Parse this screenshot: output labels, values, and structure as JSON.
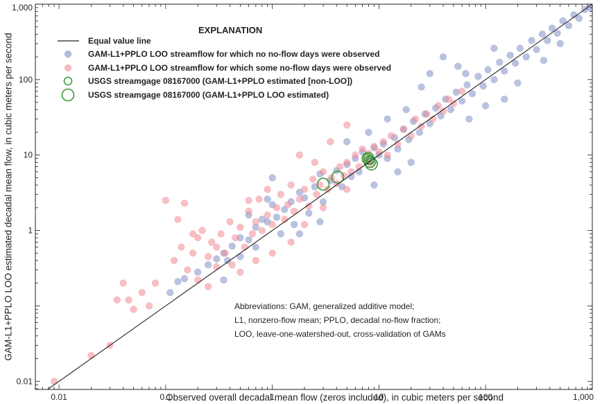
{
  "chart_data": {
    "type": "scatter",
    "scale": {
      "x": "log",
      "y": "log"
    },
    "xlim": [
      0.006,
      1000
    ],
    "ylim": [
      0.0078,
      1000
    ],
    "xlabel": "Observed overall decadal mean flow (zeros included), in cubic meters per second",
    "ylabel": "GAM-L1+PPLO LOO estimated decadal mean flow, in cubic meters per second",
    "x_ticks": [
      {
        "value": 0.01,
        "label": "0.01"
      },
      {
        "value": 0.1,
        "label": "0.1"
      },
      {
        "value": 1,
        "label": "1"
      },
      {
        "value": 10,
        "label": "10"
      },
      {
        "value": 100,
        "label": "100"
      },
      {
        "value": 1000,
        "label": "1,000"
      }
    ],
    "y_ticks": [
      {
        "value": 0.01,
        "label": "0.01"
      },
      {
        "value": 1,
        "label": "1"
      },
      {
        "value": 10,
        "label": "10"
      },
      {
        "value": 100,
        "label": "100"
      },
      {
        "value": 1000,
        "label": "1,000"
      }
    ],
    "grid": false,
    "legend": {
      "title": "EXPLANATION",
      "placement": "top-left",
      "entries": [
        {
          "label": "Equal value line",
          "symbol": "line",
          "color": "#231f20"
        },
        {
          "label": "GAM-L1+PPLO LOO streamflow for which no no-flow days were observed",
          "symbol": "dot",
          "color": "#7f8fc4"
        },
        {
          "label": "GAM-L1+PPLO LOO streamflow for which some no-flow days were observed",
          "symbol": "dot",
          "color": "#f08a94"
        },
        {
          "label": "USGS streamgage 08167000 (GAM-L1+PPLO estimated [non-LOO])",
          "symbol": "ring-small",
          "color": "#3a9a3a"
        },
        {
          "label": "USGS streamgage 08167000 (GAM-L1+PPLO LOO estimated)",
          "symbol": "ring-large",
          "color": "#3a9a3a"
        }
      ]
    },
    "annotation": [
      "Abbreviations: GAM, generalized additive model;",
      "L1, nonzero-flow mean; PPLO, decadal no-flow fraction;",
      "LOO, leave-one-watershed-out, cross-validation of GAMs"
    ],
    "equal_value_line": {
      "x": [
        0.006,
        1000
      ],
      "y": [
        0.006,
        1000
      ]
    },
    "series": [
      {
        "name": "GAM-L1+PPLO LOO streamflow for which no no-flow days were observed",
        "color": "#7f8fc4",
        "points": [
          [
            0.11,
            0.15
          ],
          [
            0.13,
            0.21
          ],
          [
            0.15,
            0.23
          ],
          [
            0.2,
            0.28
          ],
          [
            0.25,
            0.35
          ],
          [
            0.3,
            0.42
          ],
          [
            0.35,
            0.5
          ],
          [
            0.38,
            0.4
          ],
          [
            0.42,
            0.62
          ],
          [
            0.5,
            0.8
          ],
          [
            0.5,
            0.45
          ],
          [
            0.6,
            0.75
          ],
          [
            0.7,
            1.1
          ],
          [
            0.7,
            0.6
          ],
          [
            0.8,
            1.4
          ],
          [
            0.9,
            1.3
          ],
          [
            1.0,
            2.2
          ],
          [
            1.0,
            5.0
          ],
          [
            1.1,
            1.5
          ],
          [
            1.2,
            0.9
          ],
          [
            1.3,
            1.9
          ],
          [
            1.5,
            2.4
          ],
          [
            1.6,
            1.2
          ],
          [
            1.8,
            3.2
          ],
          [
            2.0,
            2.7
          ],
          [
            2.2,
            1.7
          ],
          [
            2.5,
            3.8
          ],
          [
            2.8,
            5.6
          ],
          [
            3.0,
            2.4
          ],
          [
            3.5,
            4.6
          ],
          [
            4.0,
            6.2
          ],
          [
            4.5,
            3.8
          ],
          [
            5.0,
            7.5
          ],
          [
            5.5,
            5.2
          ],
          [
            6.0,
            9.0
          ],
          [
            6.5,
            6.0
          ],
          [
            7.0,
            11.0
          ],
          [
            8.0,
            8.5
          ],
          [
            9.0,
            12.5
          ],
          [
            10,
            10
          ],
          [
            11,
            14
          ],
          [
            12,
            9
          ],
          [
            14,
            17
          ],
          [
            15,
            12
          ],
          [
            17,
            22
          ],
          [
            19,
            16
          ],
          [
            21,
            28
          ],
          [
            24,
            20
          ],
          [
            27,
            35
          ],
          [
            30,
            26
          ],
          [
            34,
            42
          ],
          [
            38,
            33
          ],
          [
            42,
            55
          ],
          [
            47,
            40
          ],
          [
            53,
            68
          ],
          [
            60,
            52
          ],
          [
            67,
            85
          ],
          [
            75,
            65
          ],
          [
            85,
            110
          ],
          [
            95,
            82
          ],
          [
            105,
            135
          ],
          [
            120,
            100
          ],
          [
            135,
            170
          ],
          [
            150,
            130
          ],
          [
            170,
            210
          ],
          [
            190,
            165
          ],
          [
            210,
            260
          ],
          [
            240,
            200
          ],
          [
            270,
            330
          ],
          [
            300,
            250
          ],
          [
            340,
            400
          ],
          [
            380,
            330
          ],
          [
            420,
            480
          ],
          [
            470,
            410
          ],
          [
            530,
            600
          ],
          [
            600,
            520
          ],
          [
            670,
            720
          ],
          [
            750,
            650
          ],
          [
            850,
            850
          ],
          [
            950,
            900
          ],
          [
            40,
            200
          ],
          [
            25,
            80
          ],
          [
            30,
            120
          ],
          [
            70,
            30
          ],
          [
            100,
            45
          ],
          [
            200,
            90
          ],
          [
            150,
            55
          ],
          [
            55,
            150
          ],
          [
            120,
            260
          ],
          [
            350,
            180
          ],
          [
            500,
            300
          ],
          [
            18,
            40
          ],
          [
            8,
            20
          ],
          [
            5,
            15
          ],
          [
            15,
            6
          ],
          [
            20,
            8
          ],
          [
            0.6,
            1.6
          ],
          [
            0.35,
            0.22
          ],
          [
            0.9,
            2.6
          ],
          [
            2.8,
            1.3
          ],
          [
            1.8,
            0.9
          ],
          [
            12,
            30
          ],
          [
            9,
            4
          ],
          [
            65,
            120
          ]
        ]
      },
      {
        "name": "GAM-L1+PPLO LOO streamflow for which some no-flow days were observed",
        "color": "#f08a94",
        "points": [
          [
            0.009,
            0.01
          ],
          [
            0.02,
            0.022
          ],
          [
            0.03,
            0.03
          ],
          [
            0.035,
            0.12
          ],
          [
            0.04,
            0.2
          ],
          [
            0.045,
            0.12
          ],
          [
            0.05,
            0.09
          ],
          [
            0.06,
            0.15
          ],
          [
            0.07,
            0.1
          ],
          [
            0.08,
            0.2
          ],
          [
            0.1,
            2.5
          ],
          [
            0.12,
            0.4
          ],
          [
            0.13,
            1.4
          ],
          [
            0.14,
            0.6
          ],
          [
            0.15,
            2.3
          ],
          [
            0.16,
            0.3
          ],
          [
            0.18,
            0.5
          ],
          [
            0.2,
            0.8
          ],
          [
            0.2,
            0.22
          ],
          [
            0.22,
            1.0
          ],
          [
            0.25,
            0.45
          ],
          [
            0.27,
            0.7
          ],
          [
            0.3,
            0.33
          ],
          [
            0.33,
            0.9
          ],
          [
            0.36,
            0.5
          ],
          [
            0.4,
            1.3
          ],
          [
            0.42,
            0.35
          ],
          [
            0.45,
            0.8
          ],
          [
            0.5,
            1.1
          ],
          [
            0.55,
            0.6
          ],
          [
            0.6,
            1.8
          ],
          [
            0.65,
            0.9
          ],
          [
            0.7,
            1.3
          ],
          [
            0.75,
            2.6
          ],
          [
            0.8,
            1.0
          ],
          [
            0.9,
            1.6
          ],
          [
            1.0,
            1.2
          ],
          [
            1.1,
            2.0
          ],
          [
            1.2,
            3.0
          ],
          [
            1.3,
            1.4
          ],
          [
            1.4,
            2.2
          ],
          [
            1.5,
            4.0
          ],
          [
            1.6,
            1.8
          ],
          [
            1.8,
            2.6
          ],
          [
            2.0,
            3.5
          ],
          [
            2.2,
            2.1
          ],
          [
            2.4,
            4.8
          ],
          [
            2.6,
            3.0
          ],
          [
            2.8,
            4.0
          ],
          [
            3.0,
            6.0
          ],
          [
            3.3,
            3.5
          ],
          [
            3.6,
            5.0
          ],
          [
            4.0,
            4.2
          ],
          [
            4.3,
            7.0
          ],
          [
            4.7,
            5.3
          ],
          [
            5.0,
            8.0
          ],
          [
            5.5,
            6.0
          ],
          [
            6.0,
            10.0
          ],
          [
            6.5,
            7.0
          ],
          [
            7.0,
            12.0
          ],
          [
            7.5,
            8.5
          ],
          [
            8.0,
            10.5
          ],
          [
            8.5,
            7.5
          ],
          [
            9.0,
            13.0
          ],
          [
            10,
            11
          ],
          [
            11,
            15
          ],
          [
            12,
            10
          ],
          [
            13,
            18
          ],
          [
            15,
            14
          ],
          [
            17,
            22
          ],
          [
            20,
            18
          ],
          [
            22,
            30
          ],
          [
            25,
            24
          ],
          [
            28,
            35
          ],
          [
            32,
            30
          ],
          [
            36,
            45
          ],
          [
            40,
            38
          ],
          [
            45,
            55
          ],
          [
            50,
            48
          ],
          [
            60,
            70
          ],
          [
            1.5,
            0.7
          ],
          [
            2.0,
            1.2
          ],
          [
            1.0,
            0.5
          ],
          [
            0.7,
            0.4
          ],
          [
            3.0,
            2.0
          ],
          [
            5.0,
            3.5
          ],
          [
            0.3,
            0.6
          ],
          [
            0.5,
            0.28
          ],
          [
            1.8,
            10
          ],
          [
            3.5,
            15
          ],
          [
            5.0,
            25
          ],
          [
            2.5,
            8
          ],
          [
            0.9,
            3.5
          ],
          [
            0.25,
            0.18
          ],
          [
            0.18,
            0.9
          ],
          [
            0.6,
            2.5
          ]
        ]
      }
    ],
    "gage_points": {
      "non_loo": {
        "label": "USGS streamgage 08167000 (GAM-L1+PPLO estimated [non-LOO])",
        "points": [
          [
            7.8,
            9.2
          ],
          [
            8.3,
            8.5
          ]
        ]
      },
      "loo": {
        "label": "USGS streamgage 08167000 (GAM-L1+PPLO LOO estimated)",
        "points": [
          [
            3.0,
            4.1
          ],
          [
            4.1,
            5.1
          ],
          [
            7.9,
            9.0
          ],
          [
            8.2,
            8.2
          ],
          [
            8.5,
            7.6
          ]
        ]
      }
    }
  }
}
